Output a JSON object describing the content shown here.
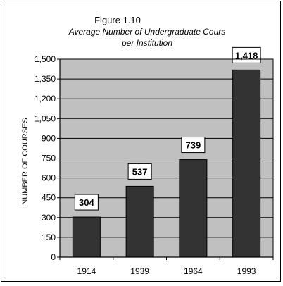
{
  "chart_data": {
    "type": "bar",
    "title": "Figure 1.10",
    "subtitle_line1": "Average Number of Undergraduate Cours",
    "subtitle_line2": "per Institution",
    "xlabel": "",
    "ylabel": "NUMBER OF COURSES",
    "categories": [
      "1914",
      "1939",
      "1964",
      "1993"
    ],
    "values": [
      304,
      537,
      739,
      1418
    ],
    "data_labels": [
      "304",
      "537",
      "739",
      "1,418"
    ],
    "ylim": [
      0,
      1500
    ],
    "yticks": [
      0,
      150,
      300,
      450,
      600,
      750,
      900,
      1050,
      1200,
      1350,
      1500
    ],
    "ytick_labels": [
      "0",
      "150",
      "300",
      "450",
      "600",
      "750",
      "900",
      "1,050",
      "1,200",
      "1,350",
      "1,500"
    ],
    "grid": true,
    "legend": "none",
    "colors": {
      "bar": "#333333",
      "plot_background": "#c0c0c0",
      "gridline": "#000000",
      "label_box": "#ffffff"
    }
  }
}
